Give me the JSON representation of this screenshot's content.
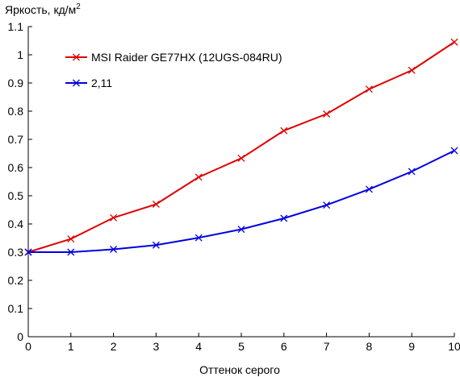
{
  "chart_data": {
    "type": "line",
    "ylabel": "Яркость, кд/м",
    "ylabel_superscript": "2",
    "xlabel": "Оттенок серого",
    "x": [
      0,
      1,
      2,
      3,
      4,
      5,
      6,
      7,
      8,
      9,
      10
    ],
    "xlim": [
      0,
      10
    ],
    "ylim": [
      0,
      1.1
    ],
    "x_ticks": [
      "0",
      "1",
      "2",
      "3",
      "4",
      "5",
      "6",
      "7",
      "8",
      "9",
      "10"
    ],
    "y_ticks": [
      "0",
      "0.1",
      "0.2",
      "0.3",
      "0.4",
      "0.5",
      "0.6",
      "0.7",
      "0.8",
      "0.9",
      "1",
      "1.1"
    ],
    "grid": false,
    "legend_position": "top-left",
    "series": [
      {
        "name": "MSI Raider GE77HX (12UGS-084RU)",
        "color": "#e00000",
        "marker": "x",
        "values": [
          0.3,
          0.347,
          0.422,
          0.47,
          0.566,
          0.633,
          0.731,
          0.79,
          0.878,
          0.945,
          1.045
        ]
      },
      {
        "name": "2,11",
        "color": "#0000e0",
        "marker": "x",
        "values": [
          0.3,
          0.3,
          0.31,
          0.325,
          0.351,
          0.381,
          0.42,
          0.467,
          0.523,
          0.586,
          0.66
        ]
      }
    ]
  }
}
